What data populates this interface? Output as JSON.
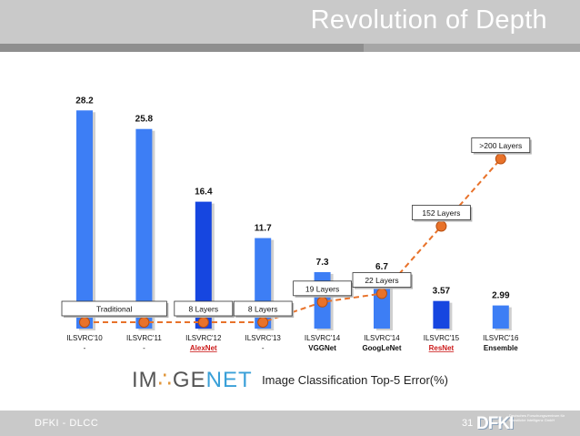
{
  "title": "Revolution of Depth",
  "chart_data": {
    "type": "bar",
    "categories": [
      "ILSVRC'10",
      "ILSVRC'11",
      "ILSVRC'12",
      "ILSVRC'13",
      "ILSVRC'14",
      "ILSVRC'14",
      "ILSVRC'15",
      "ILSVRC'16"
    ],
    "models": [
      "-",
      "-",
      "AlexNet",
      "-",
      "VGGNet",
      "GoogLeNet",
      "ResNet",
      "Ensemble"
    ],
    "values": [
      28.2,
      25.8,
      16.4,
      11.7,
      7.3,
      6.7,
      3.57,
      2.99
    ],
    "value_labels": [
      "28.2",
      "25.8",
      "16.4",
      "11.7",
      "7.3",
      "6.7",
      "3.57",
      "2.99"
    ],
    "depth_line": [
      0.3,
      0.3,
      0.3,
      0.3,
      1.5,
      2.0,
      6.0,
      10.0
    ],
    "depth_labels": [
      {
        "text": "Traditional",
        "points": [
          0,
          1
        ]
      },
      {
        "text": "8 Layers",
        "points": [
          2
        ]
      },
      {
        "text": "8 Layers",
        "points": [
          3
        ]
      },
      {
        "text": "19 Layers",
        "points": [
          4
        ]
      },
      {
        "text": "22 Layers",
        "points": [
          5
        ]
      },
      {
        "text": "152 Layers",
        "points": [
          6
        ]
      },
      {
        "text": ">200 Layers",
        "points": [
          7
        ]
      }
    ],
    "highlight_models": [
      2,
      6
    ],
    "colors": {
      "bar": "#3d7ef5",
      "bar_dark": "#1646e0",
      "line": "#e8722a",
      "highlight": "#cc1a1a"
    }
  },
  "caption": {
    "logo_prefix": "IM",
    "logo_glyph": "∴",
    "logo_mid": "GE",
    "logo_suffix": "NET",
    "text": "Image Classification Top-5 Error(%)"
  },
  "footer": {
    "left": "DFKI  -  DLCC",
    "page": "31",
    "logo_mark": "DFKI",
    "logo_small": "Deutsches Forschungszentrum für Künstliche Intelligenz GmbH"
  }
}
